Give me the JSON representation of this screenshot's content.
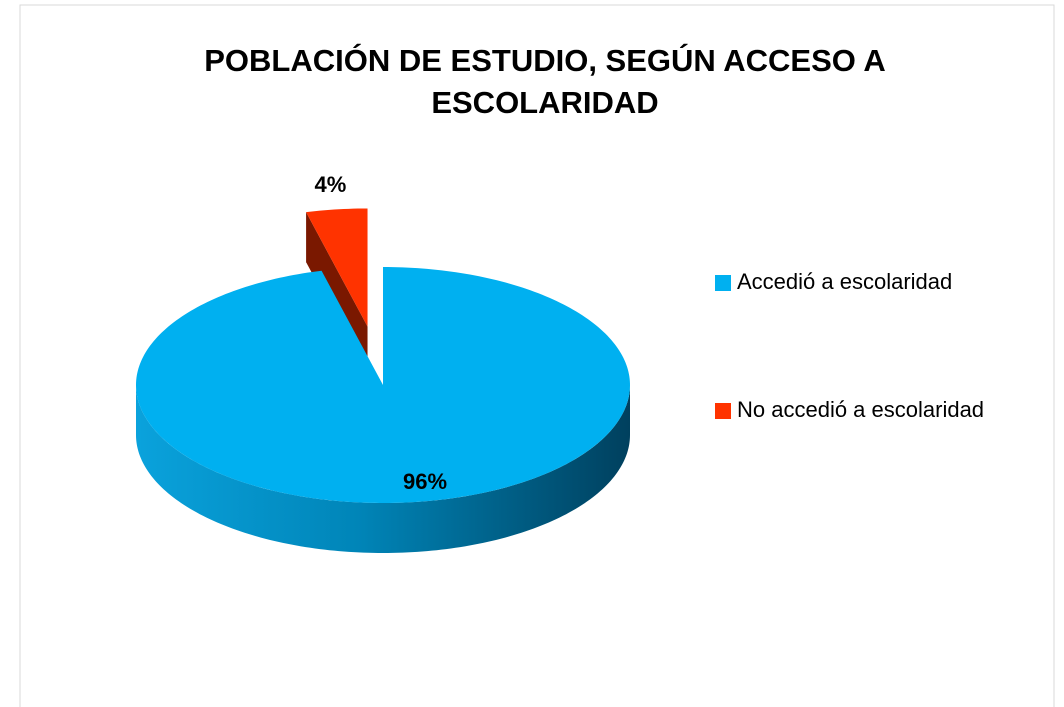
{
  "chart_data": {
    "type": "pie",
    "title": "POBLACIÓN DE ESTUDIO, SEGÚN ACCESO A ESCOLARIDAD",
    "categories": [
      "Accedió a escolaridad",
      "No accedió a escolaridad"
    ],
    "values": [
      96,
      4
    ],
    "value_labels": [
      "96%",
      "4%"
    ],
    "colors": [
      "#00b0f0",
      "#ff3300"
    ],
    "legend": "right",
    "exploded": [
      false,
      true
    ]
  }
}
